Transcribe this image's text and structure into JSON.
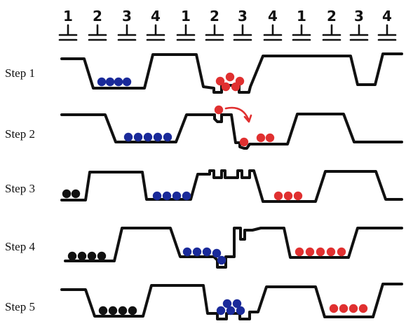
{
  "phase_numbers": [
    "1",
    "2",
    "3",
    "4",
    "1",
    "2",
    "3",
    "4",
    "1",
    "2",
    "3",
    "4"
  ],
  "steps": [
    {
      "label": "Step 1"
    },
    {
      "label": "Step 2"
    },
    {
      "label": "Step 3"
    },
    {
      "label": "Step 4"
    },
    {
      "label": "Step 5"
    }
  ],
  "colors": {
    "line": "#111111",
    "group_black": "#111111",
    "group_blue": "#1a2a9a",
    "group_red": "#e03030",
    "arrow": "#e03030"
  }
}
